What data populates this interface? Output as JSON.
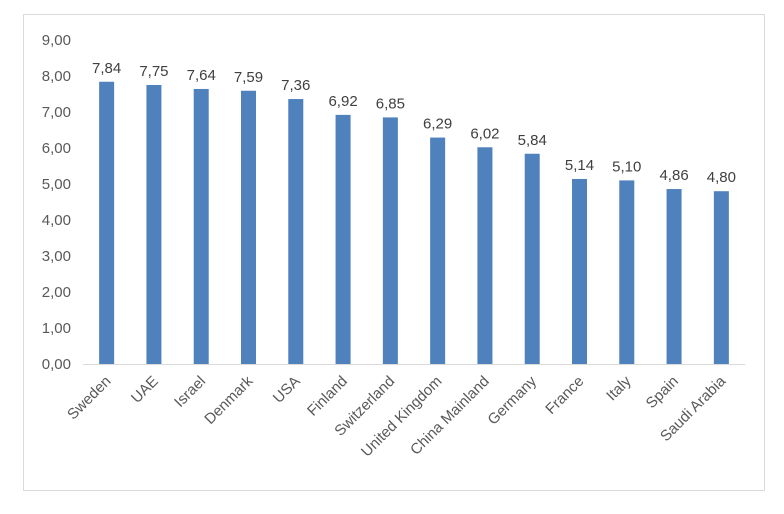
{
  "chart_data": {
    "type": "bar",
    "categories": [
      "Sweden",
      "UAE",
      "Israel",
      "Denmark",
      "USA",
      "Finland",
      "Switzerland",
      "United Kingdom",
      "China Mainland",
      "Germany",
      "France",
      "Italy",
      "Spain",
      "Saudi Arabia"
    ],
    "values": [
      7.84,
      7.75,
      7.64,
      7.59,
      7.36,
      6.92,
      6.85,
      6.29,
      6.02,
      5.84,
      5.14,
      5.1,
      4.86,
      4.8
    ],
    "value_labels": [
      "7,84",
      "7,75",
      "7,64",
      "7,59",
      "7,36",
      "6,92",
      "6,85",
      "6,29",
      "6,02",
      "5,84",
      "5,14",
      "5,10",
      "4,86",
      "4,80"
    ],
    "y_ticks": [
      0,
      1,
      2,
      3,
      4,
      5,
      6,
      7,
      8,
      9
    ],
    "y_tick_labels": [
      "0,00",
      "1,00",
      "2,00",
      "3,00",
      "4,00",
      "5,00",
      "6,00",
      "7,00",
      "8,00",
      "9,00"
    ],
    "ylim": [
      0,
      9
    ],
    "grid": false,
    "legend": "none",
    "bar_color": "#4f81bd",
    "title": "",
    "xlabel": "",
    "ylabel": ""
  }
}
